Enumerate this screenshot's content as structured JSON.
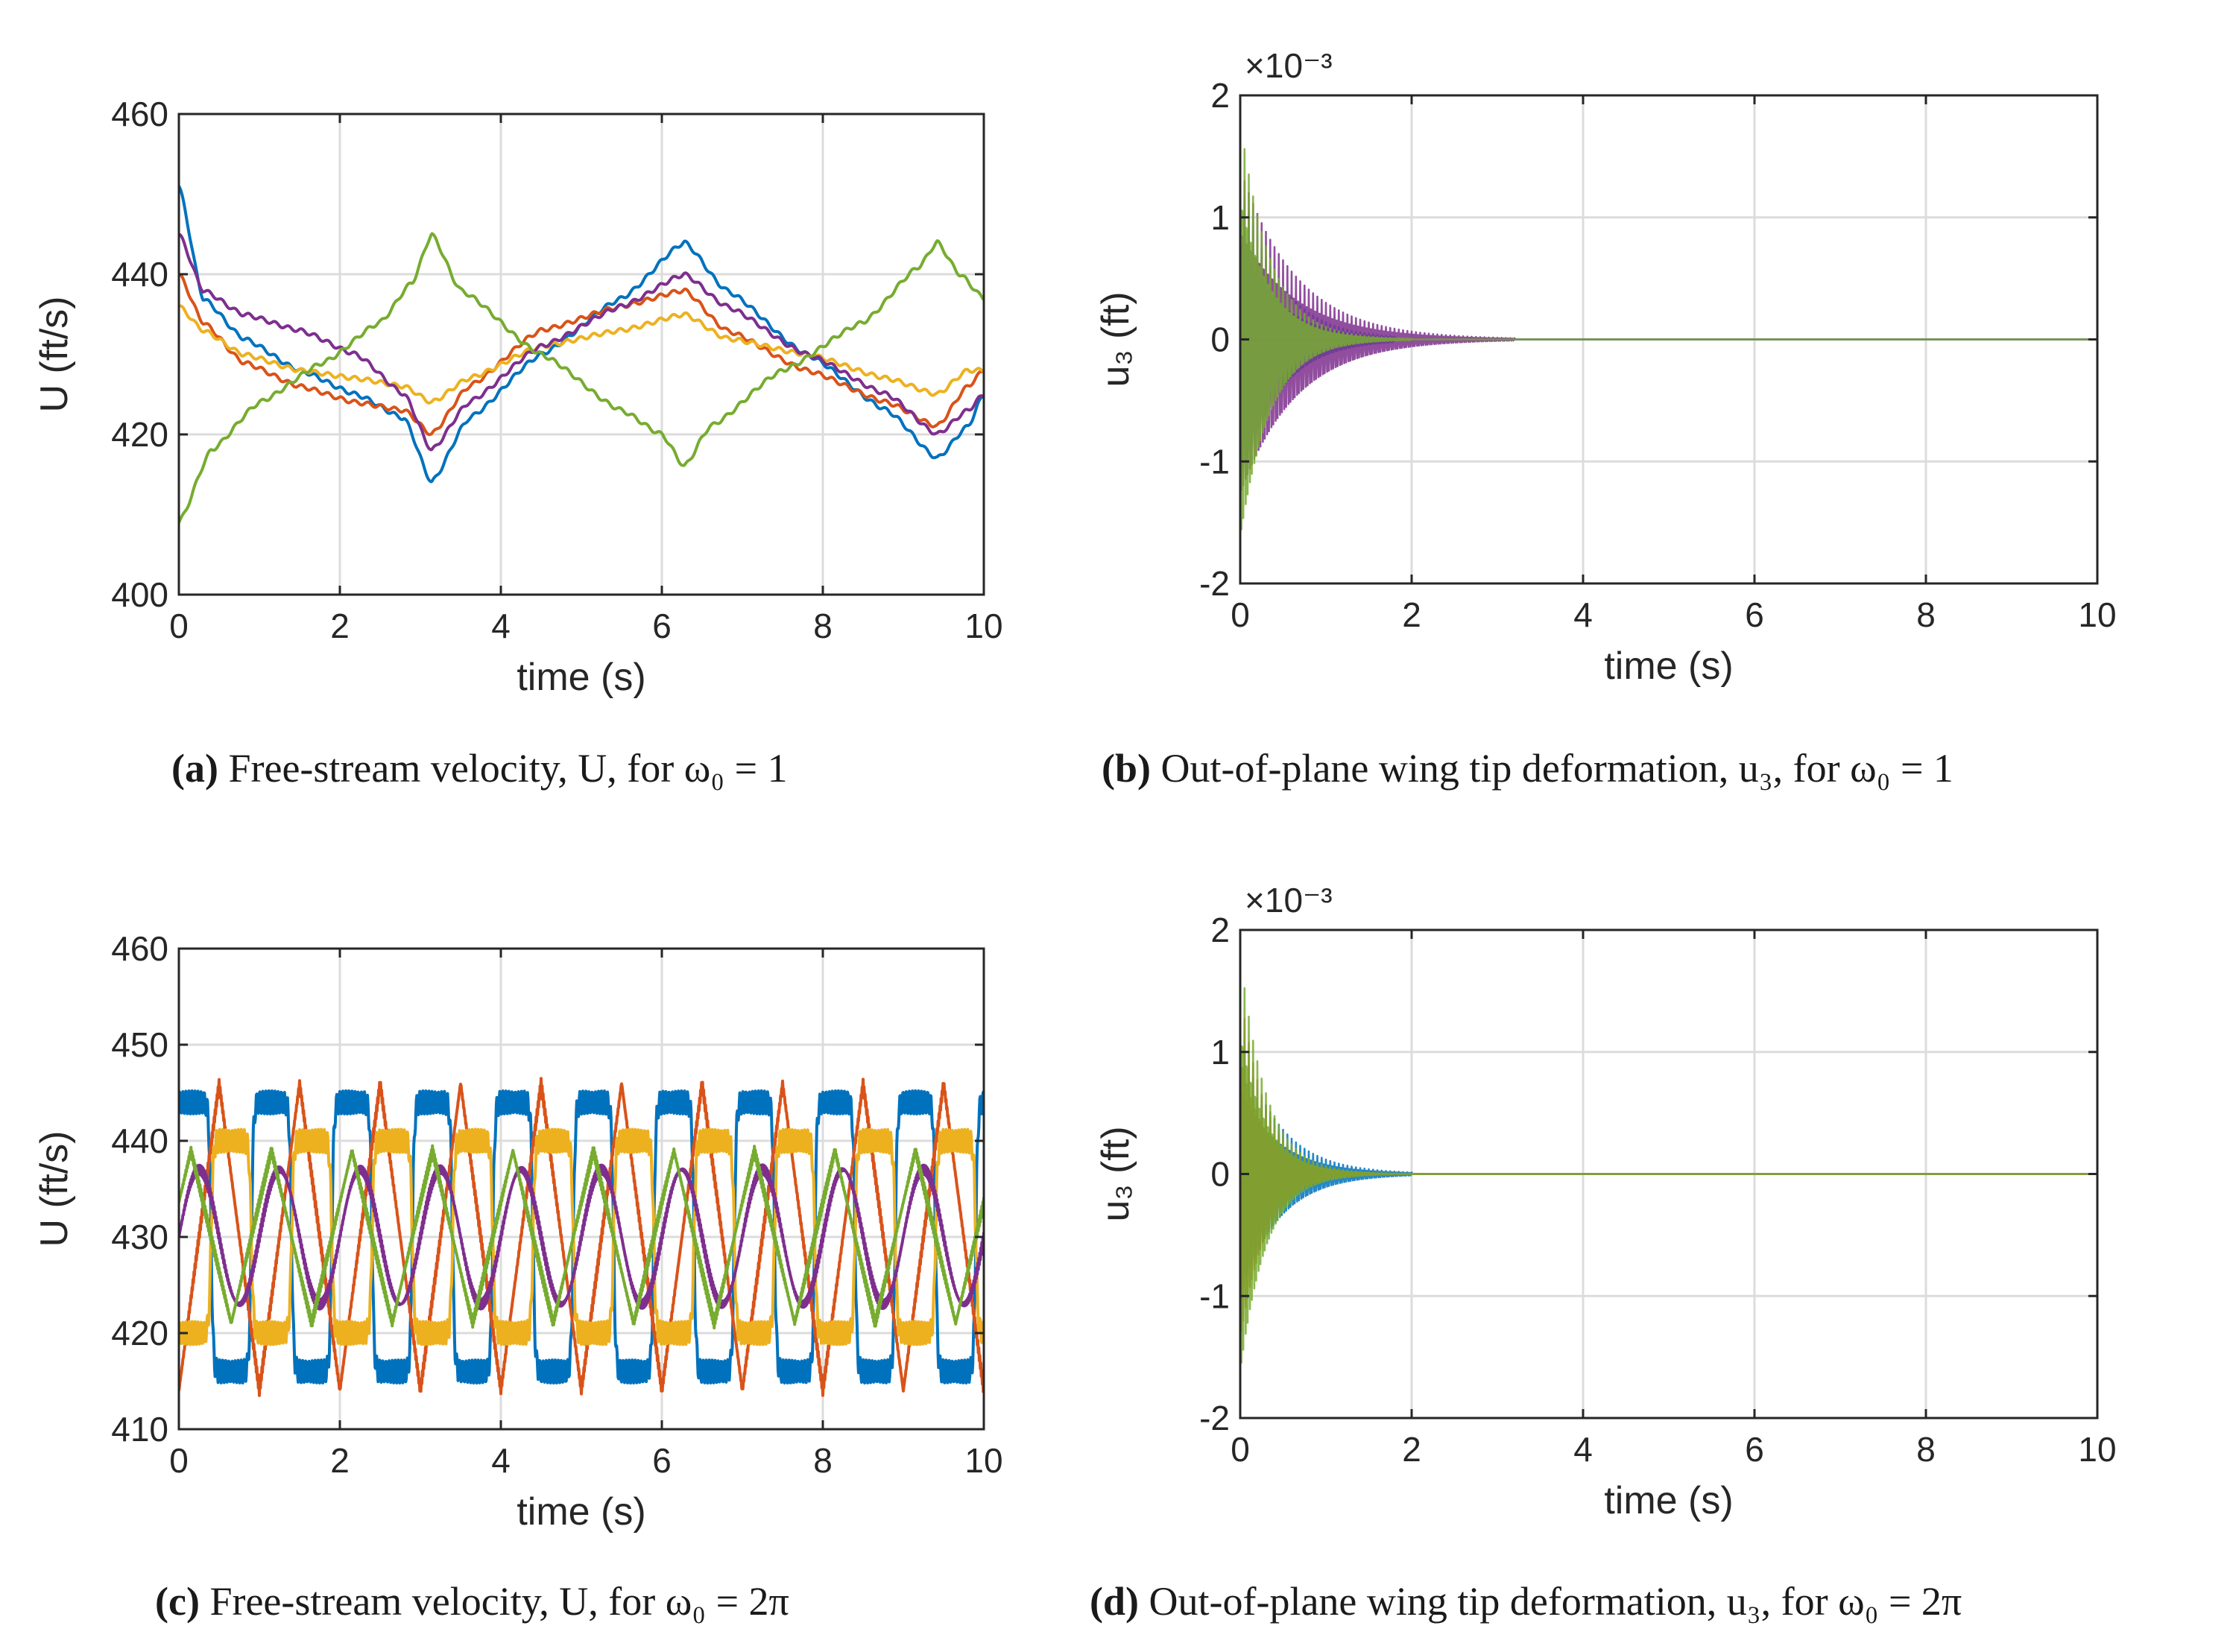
{
  "figure": {
    "colors": {
      "axis": "#262626",
      "grid": "#dcdcdc",
      "series": [
        "#0072BD",
        "#D95319",
        "#EDB120",
        "#7E2F8E",
        "#77AC30"
      ]
    }
  },
  "chart_data": [
    {
      "id": "a",
      "type": "line",
      "caption_tag": "(a)",
      "caption_text": "Free-stream velocity, U, for ω₀ = 1",
      "title": "",
      "xlabel": "time (s)",
      "ylabel": "U (ft/s)",
      "xlim": [
        0,
        10
      ],
      "ylim": [
        400,
        460
      ],
      "xticks": [
        "0",
        "2",
        "4",
        "6",
        "8",
        "10"
      ],
      "yticks": [
        "400",
        "420",
        "440",
        "460"
      ],
      "grid": true,
      "series": [
        {
          "name": "series-1",
          "color": "#0072BD",
          "x": [
            0,
            0.3,
            0.8,
            1.5,
            2.2,
            2.8,
            3.14,
            3.6,
            4.5,
            5.5,
            6.28,
            6.8,
            7.8,
            8.8,
            9.42,
            9.8,
            10
          ],
          "y": [
            451,
            437,
            432,
            428,
            425,
            422,
            414,
            422,
            430,
            437,
            444,
            438,
            430,
            423,
            417,
            421,
            425
          ]
        },
        {
          "name": "series-2",
          "color": "#D95319",
          "x": [
            0,
            0.3,
            0.8,
            1.5,
            2.2,
            2.8,
            3.14,
            3.6,
            4.5,
            5.5,
            6.28,
            6.8,
            7.8,
            8.8,
            9.42,
            9.8,
            10
          ],
          "y": [
            440,
            434,
            429,
            426,
            424,
            423,
            420,
            426,
            433,
            436,
            438,
            433,
            428,
            424,
            421,
            426,
            428
          ]
        },
        {
          "name": "series-3",
          "color": "#EDB120",
          "x": [
            0,
            0.3,
            0.8,
            1.5,
            2.2,
            2.8,
            3.14,
            3.6,
            4.5,
            5.5,
            6.28,
            6.8,
            7.8,
            8.8,
            9.42,
            9.8,
            10
          ],
          "y": [
            436,
            433,
            430,
            428,
            427,
            426,
            424,
            427,
            431,
            433,
            435,
            432,
            430,
            427,
            425,
            428,
            428
          ]
        },
        {
          "name": "series-4",
          "color": "#7E2F8E",
          "x": [
            0,
            0.3,
            0.8,
            1.5,
            2.2,
            2.8,
            3.14,
            3.6,
            4.5,
            5.5,
            6.28,
            6.8,
            7.8,
            8.8,
            9.42,
            9.8,
            10
          ],
          "y": [
            445,
            438,
            435,
            433,
            430,
            425,
            418,
            424,
            431,
            436,
            440,
            436,
            430,
            425,
            420,
            423,
            425
          ]
        },
        {
          "name": "series-5",
          "color": "#77AC30",
          "x": [
            0,
            0.4,
            1.0,
            1.8,
            2.5,
            2.9,
            3.14,
            3.5,
            4.5,
            5.5,
            6.0,
            6.28,
            6.6,
            7.5,
            8.5,
            9.2,
            9.42,
            9.7,
            10
          ],
          "y": [
            409,
            418,
            424,
            429,
            434,
            439,
            445,
            438,
            430,
            423,
            420,
            416,
            421,
            428,
            434,
            441,
            444,
            440,
            437
          ]
        }
      ]
    },
    {
      "id": "b",
      "type": "line",
      "caption_tag": "(b)",
      "caption_text": "Out-of-plane wing tip deformation, u₃, for ω₀ = 1",
      "title": "",
      "xlabel": "time (s)",
      "ylabel": "u₃ (ft)",
      "scale_note": "×10⁻³",
      "xlim": [
        0,
        10
      ],
      "ylim": [
        -2,
        2
      ],
      "xticks": [
        "0",
        "2",
        "4",
        "6",
        "8",
        "10"
      ],
      "yticks": [
        "-2",
        "-1",
        "0",
        "1",
        "2"
      ],
      "grid": true,
      "series": [
        {
          "name": "series-1",
          "color": "#0072BD",
          "kind": "damped",
          "amp": 1.3,
          "tau": 0.45,
          "freq": 30,
          "t_end": 1.8
        },
        {
          "name": "series-4",
          "color": "#7E2F8E",
          "kind": "damped",
          "amp": 1.4,
          "tau": 0.65,
          "freq": 30,
          "t_end": 3.2
        },
        {
          "name": "series-5",
          "color": "#77AC30",
          "kind": "damped",
          "amp": 1.8,
          "tau": 0.35,
          "freq": 30,
          "t_end": 2.0
        }
      ]
    },
    {
      "id": "c",
      "type": "line",
      "caption_tag": "(c)",
      "caption_text": "Free-stream velocity, U, for ω₀ = 2π",
      "title": "",
      "xlabel": "time (s)",
      "ylabel": "U (ft/s)",
      "xlim": [
        0,
        10
      ],
      "ylim": [
        410,
        460
      ],
      "xticks": [
        "0",
        "2",
        "4",
        "6",
        "8",
        "10"
      ],
      "yticks": [
        "410",
        "420",
        "430",
        "440",
        "450",
        "460"
      ],
      "grid": true,
      "series": [
        {
          "name": "series-1",
          "color": "#0072BD",
          "kind": "square",
          "mean": 430,
          "amp": 14,
          "period": 1,
          "phase": 0.1
        },
        {
          "name": "series-2",
          "color": "#D95319",
          "kind": "triangle",
          "mean": 430,
          "amp": 16,
          "period": 1,
          "phase": 0.0
        },
        {
          "name": "series-3",
          "color": "#EDB120",
          "kind": "square",
          "mean": 430,
          "amp": 10,
          "period": 1,
          "phase": 0.6
        },
        {
          "name": "series-4",
          "color": "#7E2F8E",
          "kind": "sine",
          "mean": 430,
          "amp": 7,
          "period": 1,
          "phase": 0.0
        },
        {
          "name": "series-5",
          "color": "#77AC30",
          "kind": "triangle",
          "mean": 430,
          "amp": 9,
          "period": 1,
          "phase": 0.35
        }
      ]
    },
    {
      "id": "d",
      "type": "line",
      "caption_tag": "(d)",
      "caption_text": "Out-of-plane wing tip deformation, u₃, for ω₀ = 2π",
      "title": "",
      "xlabel": "time (s)",
      "ylabel": "u₃ (ft)",
      "scale_note": "×10⁻³",
      "xlim": [
        0,
        10
      ],
      "ylim": [
        -2,
        2
      ],
      "xticks": [
        "0",
        "2",
        "4",
        "6",
        "8",
        "10"
      ],
      "yticks": [
        "-2",
        "-1",
        "0",
        "1",
        "2"
      ],
      "grid": true,
      "series": [
        {
          "name": "series-1",
          "color": "#0072BD",
          "kind": "damped",
          "amp": 1.1,
          "tau": 0.45,
          "freq": 30,
          "t_end": 2.0
        },
        {
          "name": "series-2",
          "color": "#D95319",
          "kind": "damped",
          "amp": 1.5,
          "tau": 0.3,
          "freq": 30,
          "t_end": 1.6
        },
        {
          "name": "series-5",
          "color": "#77AC30",
          "kind": "damped",
          "amp": 1.8,
          "tau": 0.3,
          "freq": 30,
          "t_end": 2.2
        }
      ]
    }
  ]
}
